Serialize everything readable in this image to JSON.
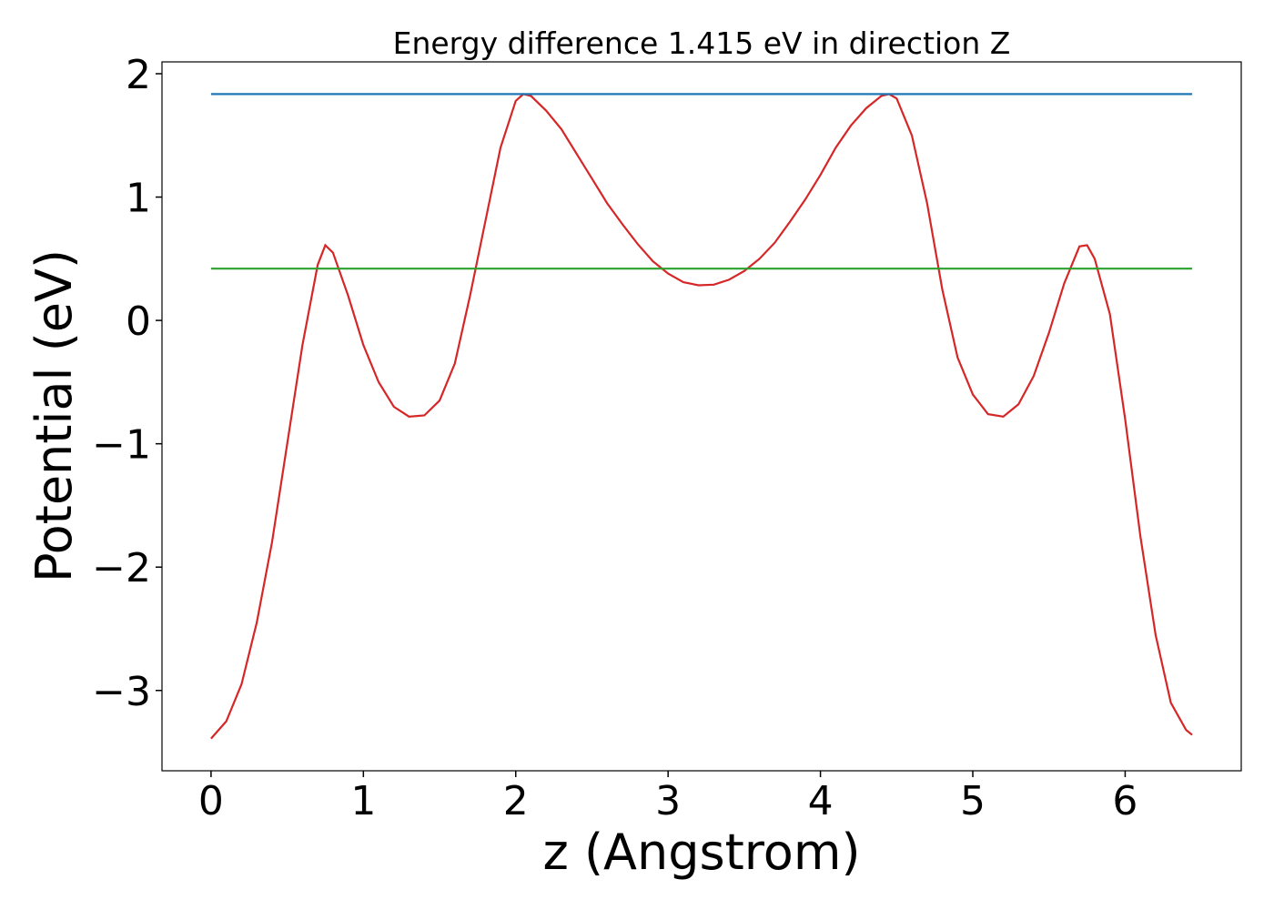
{
  "chart_data": {
    "type": "line",
    "title": "Energy difference 1.415 eV in direction Z",
    "xlabel": "z (Angstrom)",
    "ylabel": "Potential (eV)",
    "xlim": [
      -0.322,
      6.762
    ],
    "ylim": [
      -3.651,
      2.096
    ],
    "xticks": [
      0,
      1,
      2,
      3,
      4,
      5,
      6
    ],
    "yticks": [
      {
        "value": -3,
        "label": "−3"
      },
      {
        "value": -2,
        "label": "−2"
      },
      {
        "value": -1,
        "label": "−1"
      },
      0,
      1,
      2
    ],
    "grid": false,
    "series": [
      {
        "color": "#d62728",
        "x": [
          0,
          0.1,
          0.2,
          0.3,
          0.4,
          0.5,
          0.6,
          0.7,
          0.75,
          0.8,
          0.9,
          1.0,
          1.1,
          1.2,
          1.3,
          1.4,
          1.5,
          1.6,
          1.7,
          1.8,
          1.9,
          2.0,
          2.05,
          2.1,
          2.2,
          2.3,
          2.4,
          2.5,
          2.6,
          2.7,
          2.8,
          2.9,
          3.0,
          3.1,
          3.2,
          3.3,
          3.4,
          3.5,
          3.6,
          3.7,
          3.8,
          3.9,
          4.0,
          4.1,
          4.2,
          4.3,
          4.4,
          4.45,
          4.5,
          4.6,
          4.7,
          4.8,
          4.9,
          5.0,
          5.1,
          5.2,
          5.3,
          5.4,
          5.5,
          5.6,
          5.7,
          5.75,
          5.8,
          5.9,
          6.0,
          6.1,
          6.2,
          6.3,
          6.4,
          6.44
        ],
        "values": [
          -3.39,
          -3.25,
          -2.95,
          -2.45,
          -1.8,
          -1.0,
          -0.2,
          0.45,
          0.61,
          0.55,
          0.2,
          -0.2,
          -0.5,
          -0.7,
          -0.78,
          -0.77,
          -0.65,
          -0.35,
          0.2,
          0.8,
          1.4,
          1.78,
          1.835,
          1.82,
          1.7,
          1.55,
          1.35,
          1.15,
          0.95,
          0.78,
          0.62,
          0.48,
          0.38,
          0.31,
          0.285,
          0.29,
          0.33,
          0.4,
          0.5,
          0.63,
          0.8,
          0.98,
          1.18,
          1.4,
          1.58,
          1.72,
          1.82,
          1.835,
          1.8,
          1.5,
          0.95,
          0.25,
          -0.3,
          -0.6,
          -0.76,
          -0.78,
          -0.68,
          -0.45,
          -0.1,
          0.3,
          0.6,
          0.61,
          0.5,
          0.05,
          -0.8,
          -1.75,
          -2.55,
          -3.1,
          -3.32,
          -3.36
        ]
      },
      {
        "color": "#1f77b4",
        "x": [
          0,
          6.44
        ],
        "values": [
          1.835,
          1.835
        ]
      },
      {
        "color": "#2ca02c",
        "x": [
          0,
          6.44
        ],
        "values": [
          0.42,
          0.42
        ]
      }
    ]
  }
}
